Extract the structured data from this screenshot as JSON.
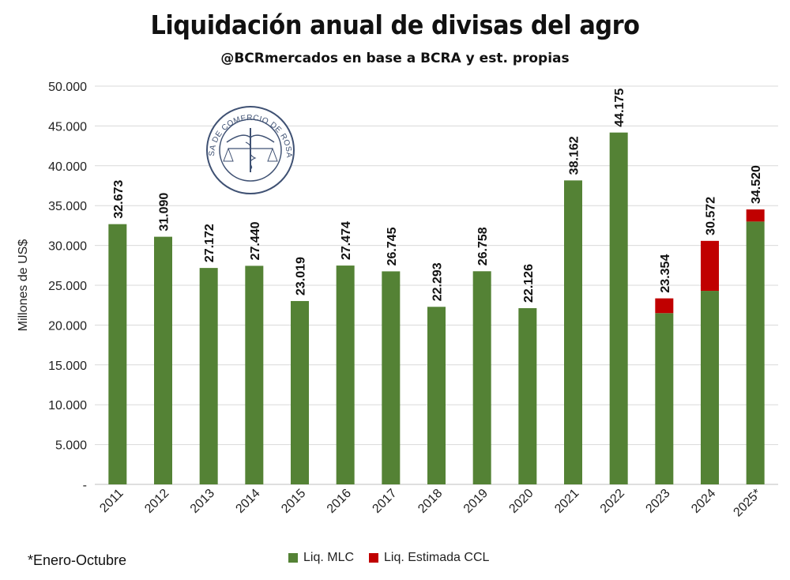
{
  "title": "Liquidación anual de divisas del agro",
  "subtitle": "@BCRmercados en base a BCRA y est. propias",
  "note": "*Enero-Octubre",
  "colors": {
    "mlc": "#548235",
    "ccl": "#c00000",
    "grid": "#d9d9d9",
    "axis": "#bfbfbf"
  },
  "seal": {
    "text": "BOLSA DE COMERCIO DE ROSARIO",
    "color": "#3f5173"
  },
  "chart_data": {
    "type": "bar",
    "stacked": true,
    "categories": [
      "2011",
      "2012",
      "2013",
      "2014",
      "2015",
      "2016",
      "2017",
      "2018",
      "2019",
      "2020",
      "2021",
      "2022",
      "2023",
      "2024",
      "2025*"
    ],
    "series": [
      {
        "name": "Liq. MLC",
        "values": [
          32673,
          31090,
          27172,
          27440,
          23019,
          27474,
          26745,
          22293,
          26758,
          22126,
          38162,
          44175,
          21500,
          24300,
          33000
        ]
      },
      {
        "name": "Liq. Estimada CCL",
        "values": [
          0,
          0,
          0,
          0,
          0,
          0,
          0,
          0,
          0,
          0,
          0,
          0,
          1854,
          6272,
          1520
        ]
      }
    ],
    "data_labels": [
      "32.673",
      "31.090",
      "27.172",
      "27.440",
      "23.019",
      "27.474",
      "26.745",
      "22.293",
      "26.758",
      "22.126",
      "38.162",
      "44.175",
      "23.354",
      "30.572",
      "34.520"
    ],
    "ylabel": "Millones de US$",
    "ylim": [
      0,
      50000
    ],
    "y_ticks": [
      0,
      5000,
      10000,
      15000,
      20000,
      25000,
      30000,
      35000,
      40000,
      45000,
      50000
    ],
    "y_tick_labels": [
      "-",
      "5.000",
      "10.000",
      "15.000",
      "20.000",
      "25.000",
      "30.000",
      "35.000",
      "40.000",
      "45.000",
      "50.000"
    ],
    "grid": true,
    "legend_position": "bottom"
  }
}
